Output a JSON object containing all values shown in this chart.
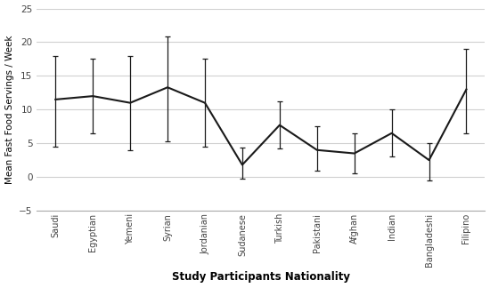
{
  "categories": [
    "Saudi",
    "Egyptian",
    "Yemeni",
    "Syrian",
    "Jordanian",
    "Sudanese",
    "Turkish",
    "Pakistani",
    "Afghan",
    "Indian",
    "Bangladeshi",
    "Filipino"
  ],
  "means": [
    11.5,
    12.0,
    11.0,
    13.3,
    11.0,
    1.8,
    7.7,
    4.0,
    3.5,
    6.5,
    2.5,
    13.0
  ],
  "lower_errors": [
    7.0,
    5.5,
    7.0,
    8.0,
    6.5,
    2.0,
    3.5,
    3.0,
    3.0,
    3.5,
    3.0,
    6.5
  ],
  "upper_errors": [
    6.5,
    5.5,
    7.0,
    7.5,
    6.5,
    2.5,
    3.5,
    3.5,
    3.0,
    3.5,
    2.5,
    6.0
  ],
  "xlabel": "Study Participants Nationality",
  "ylabel": "Mean Fast Food Servings / Week",
  "ylim": [
    -5,
    25
  ],
  "yticks": [
    -5,
    0,
    5,
    10,
    15,
    20,
    25
  ],
  "line_color": "#1a1a1a",
  "background_color": "#ffffff",
  "grid_color": "#d0d0d0"
}
